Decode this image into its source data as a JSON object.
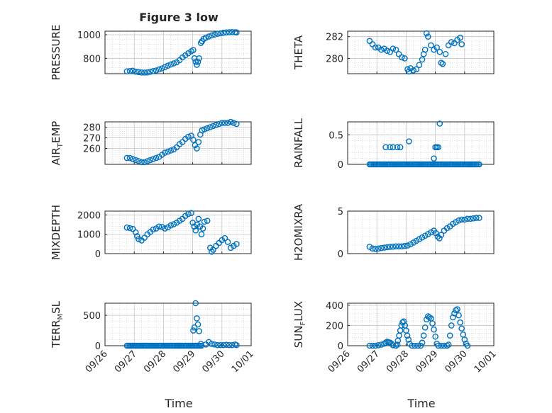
{
  "chart_data": {
    "title": "Figure 3 low",
    "x_tick_labels": [
      "09/26",
      "09/27",
      "09/28",
      "09/29",
      "09/30",
      "10/01"
    ],
    "xlabel": "Time",
    "marker_color": "#0072BD",
    "grid": true,
    "panels": [
      {
        "id": "pressure",
        "type": "scatter",
        "ylabel": "PRESSURE",
        "ylim": [
          670,
          1030
        ],
        "yticks": [
          800,
          1000
        ],
        "points": [
          [
            0.75,
            690
          ],
          [
            0.85,
            692
          ],
          [
            0.95,
            695
          ],
          [
            1.05,
            687
          ],
          [
            1.15,
            684
          ],
          [
            1.25,
            680
          ],
          [
            1.35,
            679
          ],
          [
            1.45,
            681
          ],
          [
            1.55,
            686
          ],
          [
            1.65,
            692
          ],
          [
            1.75,
            697
          ],
          [
            1.85,
            706
          ],
          [
            1.95,
            715
          ],
          [
            2.05,
            726
          ],
          [
            2.15,
            738
          ],
          [
            2.25,
            748
          ],
          [
            2.35,
            757
          ],
          [
            2.45,
            766
          ],
          [
            2.55,
            784
          ],
          [
            2.65,
            808
          ],
          [
            2.75,
            826
          ],
          [
            2.85,
            843
          ],
          [
            2.95,
            860
          ],
          [
            3.02,
            870
          ],
          [
            3.06,
            800
          ],
          [
            3.1,
            770
          ],
          [
            3.14,
            745
          ],
          [
            3.18,
            770
          ],
          [
            3.22,
            800
          ],
          [
            3.28,
            930
          ],
          [
            3.32,
            945
          ],
          [
            3.38,
            965
          ],
          [
            3.45,
            975
          ],
          [
            3.55,
            985
          ],
          [
            3.65,
            994
          ],
          [
            3.75,
            1002
          ],
          [
            3.85,
            1008
          ],
          [
            3.95,
            1012
          ],
          [
            4.05,
            1016
          ],
          [
            4.15,
            1019
          ],
          [
            4.25,
            1021
          ],
          [
            4.35,
            1022
          ],
          [
            4.45,
            1021
          ],
          [
            4.5,
            1020
          ]
        ]
      },
      {
        "id": "theta",
        "type": "scatter",
        "ylabel": "THETA",
        "ylim": [
          278.6,
          282.5
        ],
        "yticks": [
          280,
          282
        ],
        "points": [
          [
            0.75,
            281.6
          ],
          [
            0.85,
            281.3
          ],
          [
            0.95,
            281.0
          ],
          [
            1.05,
            281.0
          ],
          [
            1.15,
            280.8
          ],
          [
            1.25,
            280.9
          ],
          [
            1.35,
            280.7
          ],
          [
            1.45,
            280.6
          ],
          [
            1.55,
            280.9
          ],
          [
            1.65,
            280.8
          ],
          [
            1.75,
            280.4
          ],
          [
            1.85,
            280.1
          ],
          [
            1.95,
            280.0
          ],
          [
            2.05,
            279.0
          ],
          [
            2.1,
            278.8
          ],
          [
            2.15,
            279.1
          ],
          [
            2.25,
            278.9
          ],
          [
            2.35,
            279.0
          ],
          [
            2.45,
            279.4
          ],
          [
            2.55,
            279.9
          ],
          [
            2.6,
            280.4
          ],
          [
            2.65,
            280.8
          ],
          [
            2.7,
            282.3
          ],
          [
            2.75,
            282.0
          ],
          [
            2.85,
            281.2
          ],
          [
            2.95,
            280.8
          ],
          [
            3.05,
            281.0
          ],
          [
            3.15,
            280.6
          ],
          [
            3.2,
            279.6
          ],
          [
            3.25,
            279.5
          ],
          [
            3.35,
            280.4
          ],
          [
            3.45,
            281.2
          ],
          [
            3.55,
            281.5
          ],
          [
            3.65,
            281.4
          ],
          [
            3.75,
            281.7
          ],
          [
            3.85,
            281.9
          ],
          [
            3.9,
            281.3
          ]
        ]
      },
      {
        "id": "air_temp",
        "type": "scatter",
        "ylabel": "AIR_TEMP",
        "ylim": [
          245,
          285
        ],
        "yticks": [
          260,
          270,
          280
        ],
        "points": [
          [
            0.75,
            251
          ],
          [
            0.85,
            251
          ],
          [
            0.95,
            250
          ],
          [
            1.05,
            249
          ],
          [
            1.15,
            248
          ],
          [
            1.25,
            247
          ],
          [
            1.35,
            247
          ],
          [
            1.45,
            248
          ],
          [
            1.55,
            249
          ],
          [
            1.65,
            250
          ],
          [
            1.75,
            251
          ],
          [
            1.85,
            252
          ],
          [
            1.95,
            254
          ],
          [
            2.05,
            256
          ],
          [
            2.15,
            257
          ],
          [
            2.25,
            258
          ],
          [
            2.35,
            259
          ],
          [
            2.45,
            261
          ],
          [
            2.55,
            264
          ],
          [
            2.65,
            266
          ],
          [
            2.75,
            269
          ],
          [
            2.85,
            271
          ],
          [
            2.95,
            272
          ],
          [
            3.02,
            268
          ],
          [
            3.08,
            263
          ],
          [
            3.14,
            260
          ],
          [
            3.2,
            266
          ],
          [
            3.26,
            273
          ],
          [
            3.32,
            277
          ],
          [
            3.4,
            278
          ],
          [
            3.5,
            279
          ],
          [
            3.6,
            280
          ],
          [
            3.7,
            281
          ],
          [
            3.8,
            282
          ],
          [
            3.9,
            283
          ],
          [
            4.0,
            284
          ],
          [
            4.1,
            284
          ],
          [
            4.2,
            284
          ],
          [
            4.3,
            285
          ],
          [
            4.4,
            284
          ],
          [
            4.5,
            283
          ]
        ]
      },
      {
        "id": "rainfall",
        "type": "scatter",
        "ylabel": "RAINFALL",
        "ylim": [
          0,
          0.72
        ],
        "yticks": [
          0,
          0.5
        ],
        "baseline": [
          0.75,
          4.5,
          0
        ],
        "points": [
          [
            1.3,
            0.29
          ],
          [
            1.45,
            0.29
          ],
          [
            1.55,
            0.29
          ],
          [
            1.7,
            0.29
          ],
          [
            1.8,
            0.29
          ],
          [
            2.1,
            0.39
          ],
          [
            2.95,
            0.1
          ],
          [
            3.0,
            0.29
          ],
          [
            3.05,
            0.29
          ],
          [
            3.1,
            0.29
          ],
          [
            3.15,
            0.69
          ]
        ]
      },
      {
        "id": "mixdepth",
        "type": "scatter",
        "ylabel": "MIXDEPTH",
        "ylim": [
          0,
          2200
        ],
        "yticks": [
          0,
          1000,
          2000
        ],
        "points": [
          [
            0.75,
            1350
          ],
          [
            0.85,
            1320
          ],
          [
            0.95,
            1280
          ],
          [
            1.05,
            1100
          ],
          [
            1.1,
            900
          ],
          [
            1.15,
            750
          ],
          [
            1.25,
            680
          ],
          [
            1.35,
            820
          ],
          [
            1.45,
            1000
          ],
          [
            1.55,
            1120
          ],
          [
            1.65,
            1250
          ],
          [
            1.75,
            1300
          ],
          [
            1.85,
            1400
          ],
          [
            1.95,
            1380
          ],
          [
            2.05,
            1300
          ],
          [
            2.15,
            1360
          ],
          [
            2.25,
            1460
          ],
          [
            2.35,
            1520
          ],
          [
            2.45,
            1600
          ],
          [
            2.55,
            1700
          ],
          [
            2.65,
            1800
          ],
          [
            2.75,
            1950
          ],
          [
            2.85,
            2050
          ],
          [
            2.95,
            2100
          ],
          [
            3.0,
            1600
          ],
          [
            3.05,
            1400
          ],
          [
            3.1,
            1200
          ],
          [
            3.15,
            1500
          ],
          [
            3.2,
            1800
          ],
          [
            3.25,
            1400
          ],
          [
            3.3,
            1000
          ],
          [
            3.35,
            1300
          ],
          [
            3.4,
            1650
          ],
          [
            3.5,
            1700
          ],
          [
            3.6,
            300
          ],
          [
            3.65,
            100
          ],
          [
            3.7,
            200
          ],
          [
            3.8,
            400
          ],
          [
            3.9,
            550
          ],
          [
            4.0,
            700
          ],
          [
            4.1,
            800
          ],
          [
            4.2,
            600
          ],
          [
            4.3,
            300
          ],
          [
            4.4,
            400
          ],
          [
            4.5,
            500
          ]
        ]
      },
      {
        "id": "h2omixra",
        "type": "scatter",
        "ylabel": "H2OMIXRA",
        "ylim": [
          0,
          5
        ],
        "yticks": [
          0,
          5
        ],
        "points": [
          [
            0.75,
            0.8
          ],
          [
            0.85,
            0.6
          ],
          [
            0.95,
            0.55
          ],
          [
            1.05,
            0.6
          ],
          [
            1.15,
            0.65
          ],
          [
            1.25,
            0.7
          ],
          [
            1.35,
            0.75
          ],
          [
            1.45,
            0.8
          ],
          [
            1.55,
            0.82
          ],
          [
            1.65,
            0.85
          ],
          [
            1.75,
            0.85
          ],
          [
            1.85,
            0.85
          ],
          [
            1.95,
            0.9
          ],
          [
            2.05,
            0.95
          ],
          [
            2.15,
            1.1
          ],
          [
            2.25,
            1.3
          ],
          [
            2.35,
            1.5
          ],
          [
            2.45,
            1.7
          ],
          [
            2.55,
            1.9
          ],
          [
            2.65,
            2.1
          ],
          [
            2.75,
            2.3
          ],
          [
            2.85,
            2.5
          ],
          [
            2.95,
            2.7
          ],
          [
            3.02,
            2.4
          ],
          [
            3.08,
            2.0
          ],
          [
            3.14,
            1.8
          ],
          [
            3.2,
            2.2
          ],
          [
            3.3,
            2.7
          ],
          [
            3.4,
            3.0
          ],
          [
            3.5,
            3.2
          ],
          [
            3.6,
            3.5
          ],
          [
            3.7,
            3.7
          ],
          [
            3.8,
            3.9
          ],
          [
            3.9,
            4.0
          ],
          [
            4.0,
            4.0
          ],
          [
            4.1,
            4.1
          ],
          [
            4.2,
            4.1
          ],
          [
            4.3,
            4.15
          ],
          [
            4.4,
            4.2
          ],
          [
            4.5,
            4.2
          ]
        ]
      },
      {
        "id": "terr_msl",
        "type": "scatter",
        "ylabel": "TERR_MSL",
        "ylim": [
          0,
          700
        ],
        "yticks": [
          0,
          500
        ],
        "baseline": [
          0.75,
          3.3,
          0
        ],
        "points": [
          [
            3.02,
            250
          ],
          [
            3.06,
            300
          ],
          [
            3.1,
            700
          ],
          [
            3.14,
            450
          ],
          [
            3.18,
            350
          ],
          [
            3.22,
            240
          ],
          [
            3.28,
            30
          ],
          [
            3.45,
            20
          ],
          [
            3.55,
            60
          ],
          [
            3.65,
            30
          ],
          [
            3.75,
            20
          ],
          [
            3.85,
            10
          ],
          [
            3.95,
            10
          ],
          [
            4.05,
            10
          ],
          [
            4.15,
            15
          ],
          [
            4.25,
            10
          ],
          [
            4.35,
            10
          ],
          [
            4.45,
            20
          ],
          [
            4.5,
            10
          ]
        ]
      },
      {
        "id": "sun_flux",
        "type": "scatter",
        "ylabel": "SUN_FLUX",
        "ylim": [
          0,
          420
        ],
        "yticks": [
          0,
          200,
          400
        ],
        "points": [
          [
            0.75,
            0
          ],
          [
            0.85,
            0
          ],
          [
            0.95,
            0
          ],
          [
            1.05,
            5
          ],
          [
            1.15,
            10
          ],
          [
            1.25,
            20
          ],
          [
            1.3,
            30
          ],
          [
            1.35,
            40
          ],
          [
            1.4,
            35
          ],
          [
            1.45,
            30
          ],
          [
            1.5,
            20
          ],
          [
            1.55,
            5
          ],
          [
            1.65,
            0
          ],
          [
            1.7,
            10
          ],
          [
            1.72,
            50
          ],
          [
            1.76,
            100
          ],
          [
            1.8,
            150
          ],
          [
            1.84,
            200
          ],
          [
            1.88,
            230
          ],
          [
            1.92,
            240
          ],
          [
            1.96,
            200
          ],
          [
            2.0,
            150
          ],
          [
            2.04,
            100
          ],
          [
            2.08,
            60
          ],
          [
            2.12,
            20
          ],
          [
            2.2,
            0
          ],
          [
            2.3,
            0
          ],
          [
            2.4,
            0
          ],
          [
            2.5,
            0
          ],
          [
            2.55,
            30
          ],
          [
            2.6,
            100
          ],
          [
            2.65,
            180
          ],
          [
            2.7,
            260
          ],
          [
            2.75,
            290
          ],
          [
            2.8,
            280
          ],
          [
            2.85,
            270
          ],
          [
            2.9,
            220
          ],
          [
            2.95,
            160
          ],
          [
            3.0,
            90
          ],
          [
            3.05,
            20
          ],
          [
            3.1,
            0
          ],
          [
            3.2,
            0
          ],
          [
            3.3,
            0
          ],
          [
            3.4,
            0
          ],
          [
            3.45,
            10
          ],
          [
            3.5,
            100
          ],
          [
            3.55,
            200
          ],
          [
            3.6,
            280
          ],
          [
            3.65,
            320
          ],
          [
            3.7,
            350
          ],
          [
            3.75,
            360
          ],
          [
            3.8,
            300
          ],
          [
            3.85,
            230
          ],
          [
            3.9,
            170
          ],
          [
            3.95,
            110
          ],
          [
            4.0,
            60
          ],
          [
            4.05,
            20
          ],
          [
            4.1,
            0
          ]
        ]
      }
    ]
  }
}
